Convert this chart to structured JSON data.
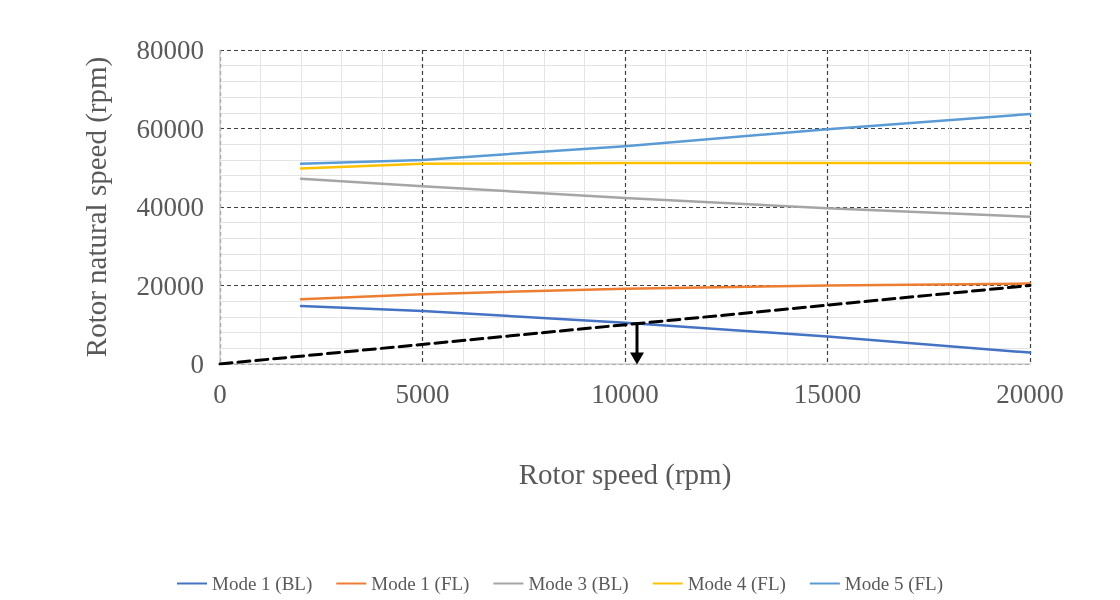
{
  "chart_data": {
    "type": "line",
    "xlabel": "Rotor speed (rpm)",
    "ylabel": "Rotor natural speed (rpm)",
    "x": [
      2000,
      5000,
      10000,
      15000,
      20000
    ],
    "xlim": [
      0,
      20000
    ],
    "xticks": [
      0,
      5000,
      10000,
      15000,
      20000
    ],
    "ylim": [
      0,
      80000
    ],
    "yticks": [
      0,
      20000,
      40000,
      60000,
      80000
    ],
    "grid": true,
    "legend": "bottom",
    "marker": "none",
    "line_style": "solid",
    "series": [
      {
        "name": "Mode 1 (BL)",
        "color": "#4472c4",
        "values": [
          14800,
          13500,
          10500,
          7000,
          2900
        ]
      },
      {
        "name": "Mode 1 (FL)",
        "color": "#ed7d31",
        "values": [
          16500,
          17800,
          19200,
          20000,
          20500
        ]
      },
      {
        "name": "Mode 3 (BL)",
        "color": "#a5a5a5",
        "values": [
          47200,
          45300,
          42300,
          39700,
          37500
        ]
      },
      {
        "name": "Mode 4 (FL)",
        "color": "#ffc000",
        "values": [
          49800,
          51000,
          51200,
          51200,
          51200
        ]
      },
      {
        "name": "Mode 5 (FL)",
        "color": "#5b9bd5",
        "values": [
          51000,
          52000,
          55500,
          59800,
          63700
        ]
      },
      {
        "color": "#000000",
        "x": [
          0,
          20000
        ],
        "values": [
          0,
          20000
        ],
        "line_style": "dashed"
      }
    ]
  }
}
